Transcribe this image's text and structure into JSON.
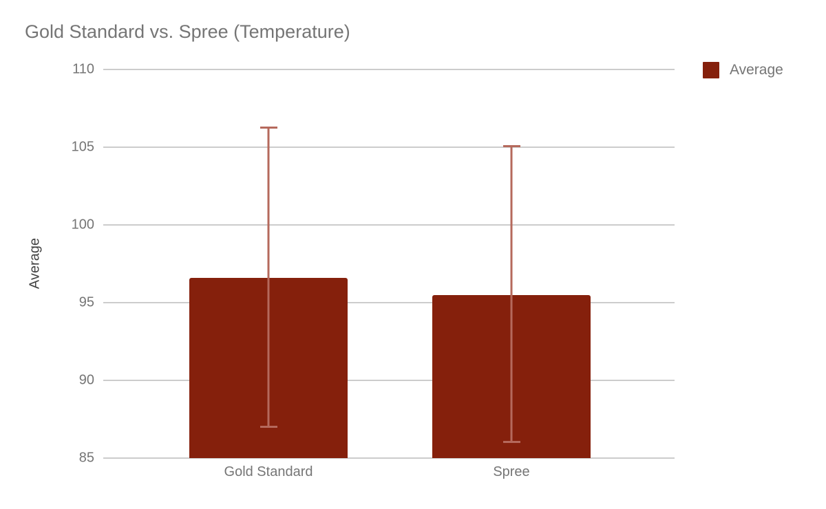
{
  "chart_data": {
    "type": "bar",
    "title": "Gold Standard vs. Spree (Temperature)",
    "xlabel": "",
    "ylabel": "Average",
    "categories": [
      "Gold Standard",
      "Spree"
    ],
    "series": [
      {
        "name": "Average",
        "values": [
          96.6,
          95.5
        ],
        "error_low": [
          87.0,
          86.0
        ],
        "error_high": [
          106.3,
          105.1
        ]
      }
    ],
    "ylim": [
      85,
      110
    ],
    "yticks": [
      110,
      105,
      100,
      95,
      90,
      85
    ],
    "grid": true,
    "legend": {
      "position": "top-right",
      "entries": [
        "Average"
      ]
    },
    "colors": {
      "bar": "#85200C",
      "error_bar": "#b5695c",
      "gridline": "#cccccc",
      "tick_label": "#757575",
      "category_label": "#757575",
      "title": "#757575",
      "axis_title": "#424242",
      "legend_label": "#757575",
      "background": "#ffffff"
    }
  }
}
